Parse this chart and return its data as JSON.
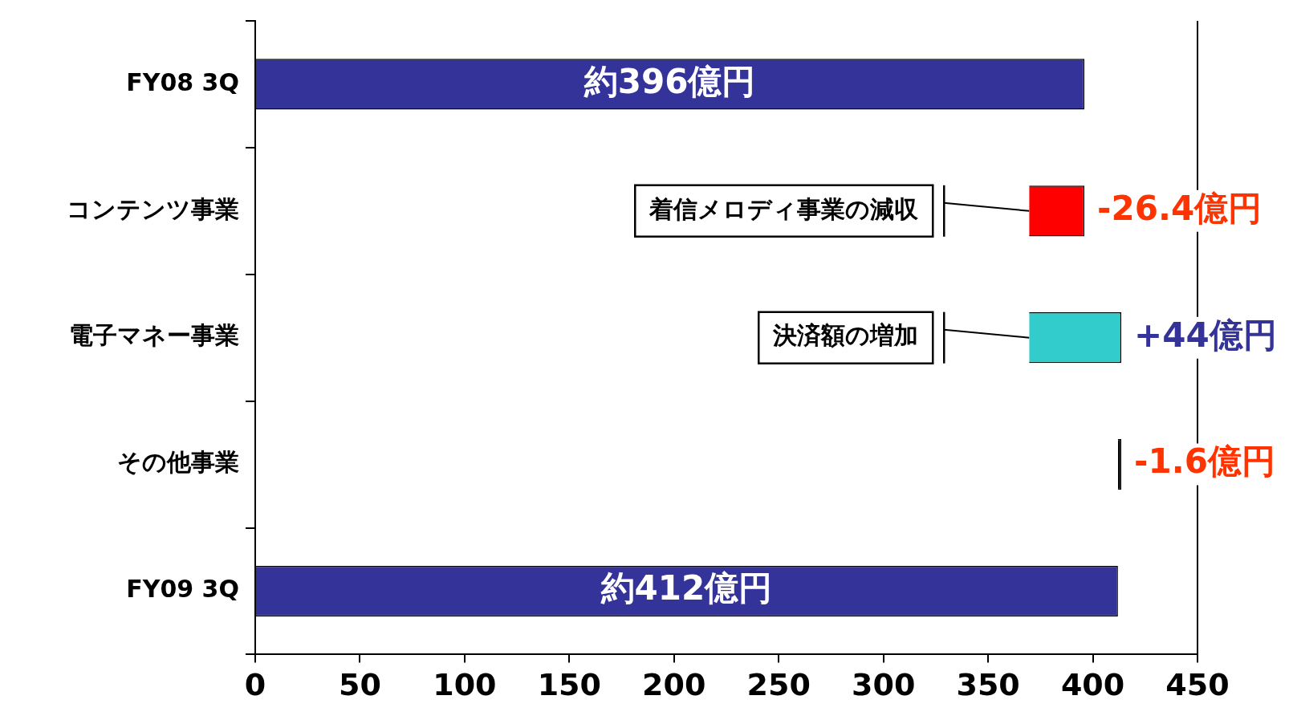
{
  "chart_data": {
    "type": "bar",
    "orientation": "horizontal",
    "categories": [
      "FY08 3Q",
      "コンテンツ事業",
      "電子マネー事業",
      "その他事業",
      "FY09 3Q"
    ],
    "values": [
      396,
      -26.4,
      44,
      -1.6,
      412
    ],
    "base": [
      0,
      396,
      369.6,
      413.6,
      0
    ],
    "colors": [
      "#333399",
      "#ff0000",
      "#33cccc",
      "#000000",
      "#333399"
    ],
    "value_labels": [
      "約396億円",
      "-26.4億円",
      "+44億円",
      "-1.6億円",
      "約412億円"
    ],
    "annotations": [
      {
        "text": "着信メロディ事業の減収",
        "x": 369.6,
        "y": "コンテンツ事業"
      },
      {
        "text": "決済額の増加",
        "x": 369.6,
        "y": "電子マネー事業"
      }
    ],
    "xlim": [
      0,
      450
    ],
    "xticks": [
      0,
      50,
      100,
      150,
      200,
      250,
      300,
      350,
      400,
      450
    ],
    "grid": false,
    "legend": false
  }
}
